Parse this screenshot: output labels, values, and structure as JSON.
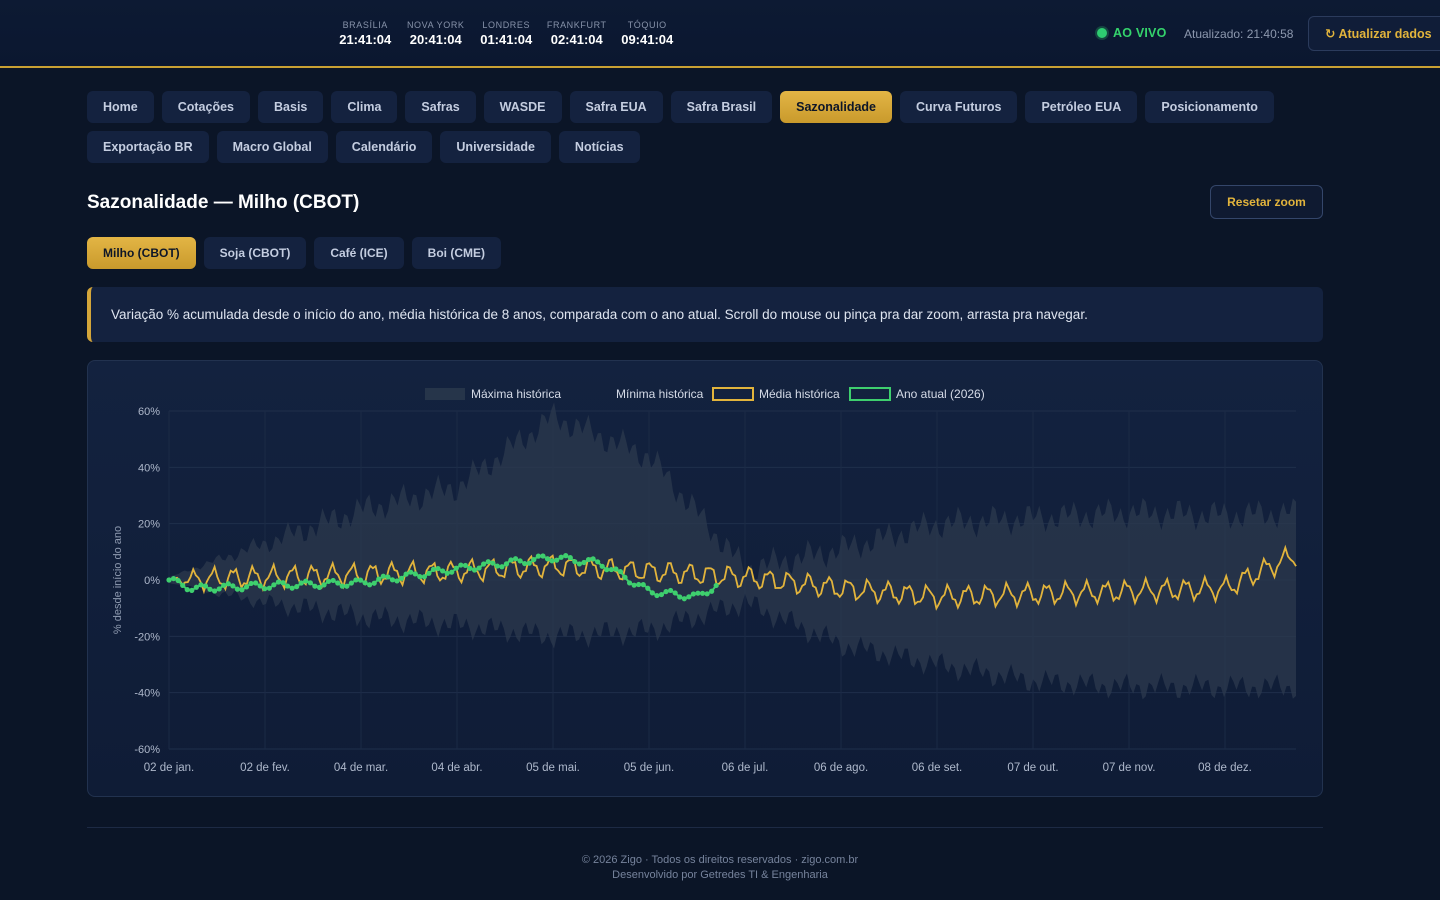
{
  "header": {
    "clocks": [
      {
        "city": "BRASÍLIA",
        "time": "21:41:04"
      },
      {
        "city": "NOVA YORK",
        "time": "20:41:04"
      },
      {
        "city": "LONDRES",
        "time": "01:41:04"
      },
      {
        "city": "FRANKFURT",
        "time": "02:41:04"
      },
      {
        "city": "TÓQUIO",
        "time": "09:41:04"
      }
    ],
    "live_label": "AO VIVO",
    "updated": "Atualizado: 21:40:58",
    "refresh_label": "↻ Atualizar dados"
  },
  "nav": {
    "row1": [
      "Home",
      "Cotações",
      "Basis",
      "Clima",
      "Safras",
      "WASDE",
      "Safra EUA",
      "Safra Brasil",
      "Sazonalidade",
      "Curva Futuros",
      "Petróleo EUA",
      "Posicionamento"
    ],
    "row2": [
      "Exportação BR",
      "Macro Global",
      "Calendário",
      "Universidade",
      "Notícias"
    ],
    "active": "Sazonalidade"
  },
  "page": {
    "title": "Sazonalidade — Milho (CBOT)",
    "reset_zoom": "Resetar zoom",
    "commodity_tabs": [
      "Milho (CBOT)",
      "Soja (CBOT)",
      "Café (ICE)",
      "Boi (CME)"
    ],
    "active_commodity": "Milho (CBOT)",
    "info": "Variação % acumulada desde o início do ano, média histórica de 8 anos, comparada com o ano atual. Scroll do mouse ou pinça pra dar zoom, arrasta pra navegar."
  },
  "colors": {
    "accent": "#d4a63a",
    "live": "#34d36c",
    "media": "#e2b43c",
    "ano_atual": "#3ecf6e",
    "band": "#2c3a4e"
  },
  "chart_data": {
    "type": "line",
    "ylabel": "% desde início do ano",
    "y_ticks": [
      "60%",
      "40%",
      "20%",
      "0%",
      "-20%",
      "-40%",
      "-60%"
    ],
    "ylim": [
      -60,
      60
    ],
    "x_ticks": [
      "02 de jan.",
      "02 de fev.",
      "04 de mar.",
      "04 de abr.",
      "05 de mai.",
      "05 de jun.",
      "06 de jul.",
      "06 de ago.",
      "06 de set.",
      "07 de out.",
      "07 de nov.",
      "08 de dez."
    ],
    "grid": true,
    "legend_position": "top",
    "legend": [
      "Máxima histórica",
      "Mínima histórica",
      "Média histórica",
      "Ano atual (2026)"
    ],
    "series": [
      {
        "name": "Máxima histórica",
        "type": "area-upper",
        "x": [
          "02 de jan.",
          "02 de fev.",
          "04 de mar.",
          "04 de abr.",
          "05 de mai.",
          "05 de jun.",
          "06 de jul.",
          "06 de ago.",
          "06 de set.",
          "07 de out.",
          "07 de nov.",
          "08 de dez.",
          "31 de dez."
        ],
        "values": [
          1,
          13,
          25,
          33,
          58,
          44,
          4,
          11,
          20,
          22,
          24,
          23,
          24
        ]
      },
      {
        "name": "Mínima histórica",
        "type": "area-lower",
        "x": [
          "02 de jan.",
          "02 de fev.",
          "04 de mar.",
          "04 de abr.",
          "05 de mai.",
          "05 de jun.",
          "06 de jul.",
          "06 de ago.",
          "06 de set.",
          "07 de out.",
          "07 de nov.",
          "08 de dez.",
          "31 de dez."
        ],
        "values": [
          -1,
          -8,
          -13,
          -16,
          -20,
          -18,
          -8,
          -23,
          -30,
          -36,
          -38,
          -38,
          -38
        ]
      },
      {
        "name": "Média histórica",
        "x": [
          "02 de jan.",
          "02 de fev.",
          "04 de mar.",
          "04 de abr.",
          "05 de mai.",
          "05 de jun.",
          "06 de jul.",
          "06 de ago.",
          "06 de set.",
          "07 de out.",
          "07 de nov.",
          "08 de dez.",
          "31 de dez."
        ],
        "values": [
          0,
          1,
          2,
          3,
          5,
          3,
          1,
          -3,
          -6,
          -5,
          -4,
          -3,
          9
        ]
      },
      {
        "name": "Ano atual (2026)",
        "x": [
          "02 de jan.",
          "09 de jan.",
          "02 de fev.",
          "04 de mar.",
          "04 de abr.",
          "05 de mai.",
          "20 de mai.",
          "05 de jun.",
          "20 de jun.",
          "26 de jun."
        ],
        "values": [
          0,
          -3,
          -2,
          -1,
          4,
          8,
          6,
          -4,
          -6,
          -2
        ]
      }
    ]
  },
  "footer": {
    "line1": "© 2026 Zigo · Todos os direitos reservados · zigo.com.br",
    "line2": "Desenvolvido por Getredes TI & Engenharia"
  }
}
